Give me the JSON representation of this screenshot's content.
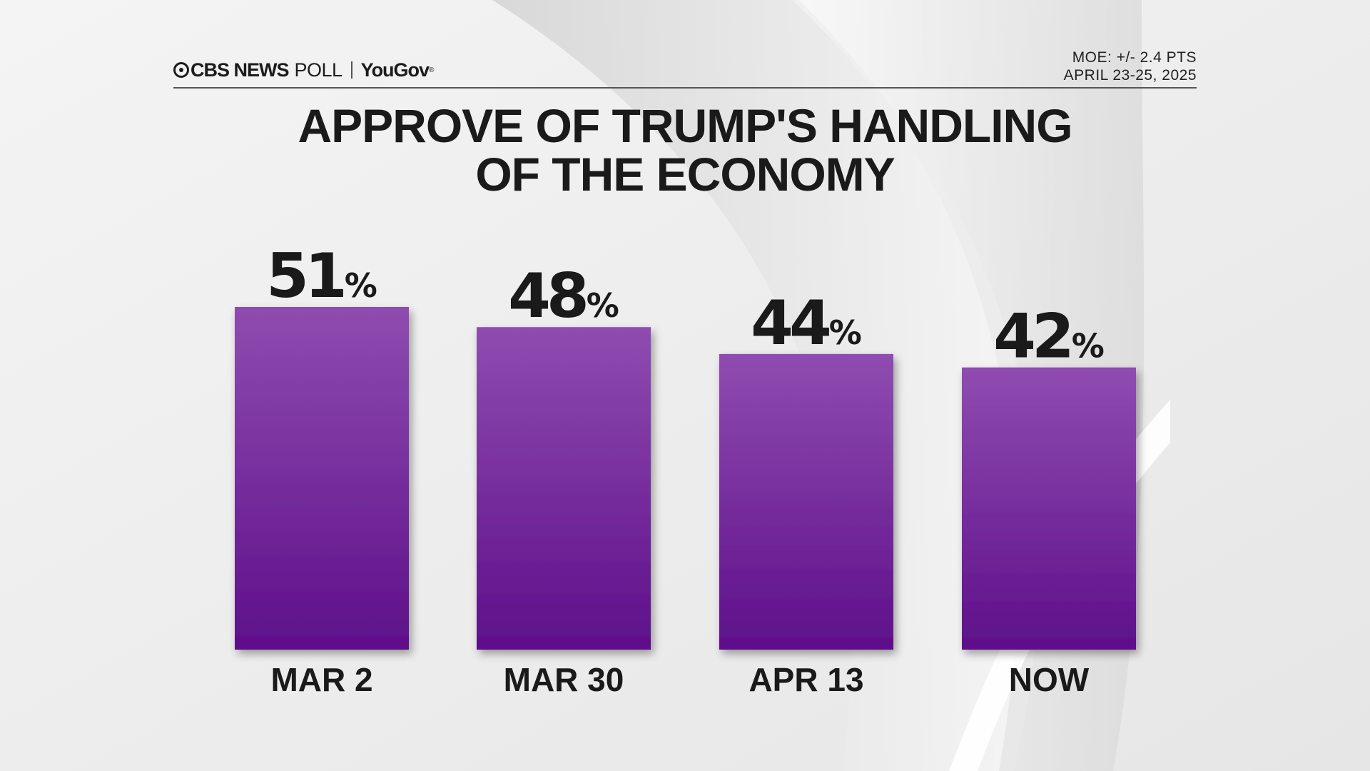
{
  "header": {
    "brand": "CBS NEWS",
    "poll": "POLL",
    "partner": "YouGov",
    "moe": "MOE: +/- 2.4 PTS",
    "dates": "APRIL 23-25, 2025"
  },
  "chart_data": {
    "type": "bar",
    "title_line1": "APPROVE OF TRUMP'S HANDLING",
    "title_line2": "OF THE ECONOMY",
    "categories": [
      "MAR 2",
      "MAR 30",
      "APR 13",
      "NOW"
    ],
    "values": [
      51,
      48,
      44,
      42
    ],
    "value_suffix": "%",
    "ylim": [
      0,
      51
    ],
    "grid": false,
    "legend": "none",
    "colors": {
      "bar_top": "#8f4cb0",
      "bar_bottom": "#5e0f8a"
    }
  }
}
